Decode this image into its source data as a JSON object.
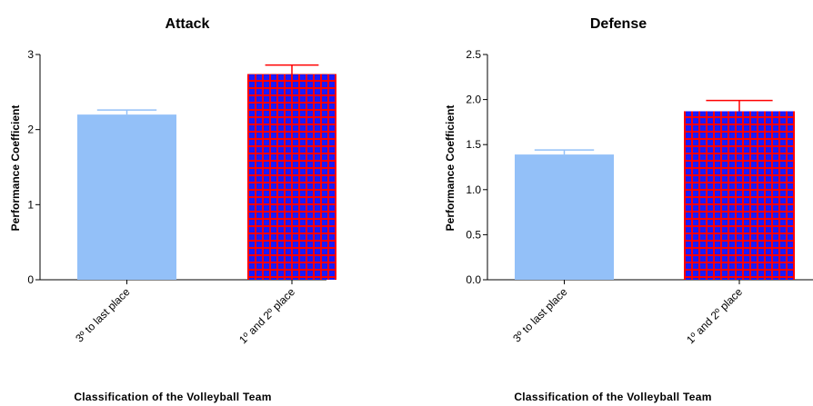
{
  "chart_data": [
    {
      "type": "bar",
      "title": "Attack",
      "ylabel": "Performance Coefficient",
      "xlabel": "Classification of the Volleyball Team",
      "ylim": [
        0,
        3
      ],
      "yticks": [
        "0",
        "1",
        "2",
        "3"
      ],
      "ytick_values": [
        0,
        1,
        2,
        3
      ],
      "categories": [
        "3º to last place",
        "1º and 2º place"
      ],
      "values": [
        2.2,
        2.74
      ],
      "errors": [
        0.06,
        0.12
      ],
      "colors": [
        "#93c0f8",
        "#ff0000"
      ],
      "pattern_color": "#1a1aff"
    },
    {
      "type": "bar",
      "title": "Defense",
      "ylabel": "Performance Coefficient",
      "xlabel": "Classification of the Volleyball Team",
      "ylim": [
        0,
        2.5
      ],
      "yticks": [
        "0.0",
        "0.5",
        "1.0",
        "1.5",
        "2.0",
        "2.5"
      ],
      "ytick_values": [
        0,
        0.5,
        1.0,
        1.5,
        2.0,
        2.5
      ],
      "categories": [
        "3º to last place",
        "1º and 2º place"
      ],
      "values": [
        1.39,
        1.87
      ],
      "errors": [
        0.05,
        0.12
      ],
      "colors": [
        "#93c0f8",
        "#ff0000"
      ],
      "pattern_color": "#1a1aff"
    }
  ]
}
